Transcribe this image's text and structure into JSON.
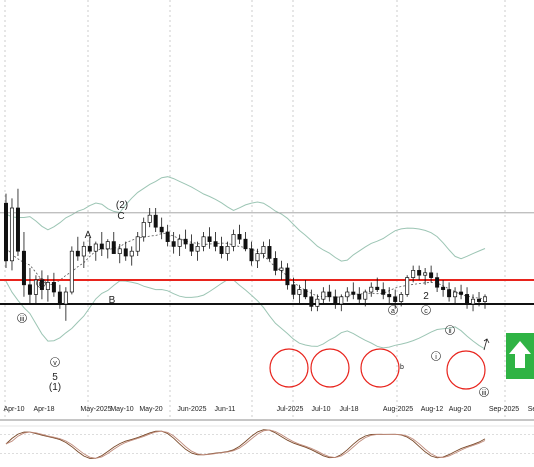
{
  "chart_data": {
    "type": "candlestick",
    "x_axis_labels": [
      "Apr-10",
      "Apr-18",
      "May-2025",
      "May-10",
      "May-20",
      "Jun-2025",
      "Jun-11",
      "Jul-2025",
      "Jul-10",
      "Jul-18",
      "Aug-2025",
      "Aug-12",
      "Aug-20",
      "Sep-2025",
      "Se"
    ],
    "levels": [
      {
        "name": "upper-horizontal",
        "value": 78,
        "color": "#9a9a9a"
      },
      {
        "name": "resistance",
        "value": 50,
        "color": "#e8231c"
      },
      {
        "name": "support",
        "value": 40,
        "color": "#111111"
      }
    ],
    "y_range": [
      0,
      100
    ],
    "wave_labels": {
      "top": [
        {
          "text": "(2)"
        },
        {
          "text": "C"
        }
      ],
      "a_left": "A",
      "b_left": "B",
      "iv": "iv",
      "iii": "iii",
      "v": "v",
      "five": "5",
      "one": "(1)",
      "two": "2",
      "a": "a",
      "c": "c",
      "b": "b",
      "ii": "ii",
      "i": "i",
      "iii_right": "iii"
    },
    "candles": [
      [
        82,
        86,
        55,
        58
      ],
      [
        58,
        84,
        54,
        80
      ],
      [
        80,
        88,
        60,
        62
      ],
      [
        62,
        70,
        43,
        48
      ],
      [
        48,
        55,
        40,
        44
      ],
      [
        44,
        52,
        40,
        50
      ],
      [
        50,
        54,
        42,
        46
      ],
      [
        46,
        52,
        41,
        49
      ],
      [
        49,
        53,
        43,
        45
      ],
      [
        45,
        48,
        38,
        40
      ],
      [
        40,
        47,
        33,
        45
      ],
      [
        45,
        64,
        44,
        62
      ],
      [
        62,
        68,
        58,
        60
      ],
      [
        60,
        66,
        55,
        64
      ],
      [
        64,
        68,
        61,
        62
      ],
      [
        62,
        66,
        58,
        65
      ],
      [
        65,
        70,
        60,
        63
      ],
      [
        63,
        67,
        59,
        66
      ],
      [
        66,
        70,
        62,
        61
      ],
      [
        61,
        65,
        57,
        63
      ],
      [
        63,
        66,
        58,
        60
      ],
      [
        60,
        64,
        56,
        62
      ],
      [
        62,
        70,
        60,
        68
      ],
      [
        68,
        76,
        66,
        74
      ],
      [
        74,
        80,
        72,
        77
      ],
      [
        77,
        80,
        70,
        72
      ],
      [
        72,
        76,
        67,
        70
      ],
      [
        70,
        73,
        64,
        66
      ],
      [
        66,
        70,
        61,
        64
      ],
      [
        64,
        69,
        60,
        67
      ],
      [
        67,
        71,
        63,
        65
      ],
      [
        65,
        69,
        60,
        62
      ],
      [
        62,
        66,
        58,
        64
      ],
      [
        64,
        70,
        62,
        68
      ],
      [
        68,
        72,
        63,
        66
      ],
      [
        66,
        70,
        62,
        64
      ],
      [
        64,
        68,
        59,
        61
      ],
      [
        61,
        66,
        58,
        64
      ],
      [
        64,
        71,
        62,
        69
      ],
      [
        69,
        73,
        65,
        67
      ],
      [
        67,
        70,
        62,
        63
      ],
      [
        63,
        66,
        56,
        58
      ],
      [
        58,
        63,
        55,
        61
      ],
      [
        61,
        66,
        59,
        64
      ],
      [
        64,
        67,
        58,
        59
      ],
      [
        59,
        62,
        52,
        54
      ],
      [
        54,
        58,
        50,
        55
      ],
      [
        55,
        57,
        46,
        48
      ],
      [
        48,
        51,
        42,
        44
      ],
      [
        44,
        48,
        40,
        46
      ],
      [
        46,
        50,
        42,
        43
      ],
      [
        43,
        46,
        37,
        39
      ],
      [
        39,
        44,
        37,
        42
      ],
      [
        42,
        47,
        40,
        45
      ],
      [
        45,
        48,
        41,
        43
      ],
      [
        43,
        46,
        38,
        40
      ],
      [
        40,
        44,
        37,
        43
      ],
      [
        43,
        47,
        41,
        45
      ],
      [
        45,
        49,
        42,
        44
      ],
      [
        44,
        47,
        40,
        42
      ],
      [
        42,
        46,
        39,
        45
      ],
      [
        45,
        49,
        43,
        47
      ],
      [
        47,
        51,
        45,
        46
      ],
      [
        46,
        49,
        42,
        44
      ],
      [
        44,
        47,
        40,
        43
      ],
      [
        43,
        46,
        38,
        41
      ],
      [
        41,
        45,
        39,
        44
      ],
      [
        44,
        52,
        43,
        51
      ],
      [
        51,
        56,
        49,
        54
      ],
      [
        54,
        56,
        50,
        52
      ],
      [
        52,
        55,
        48,
        53
      ],
      [
        53,
        56,
        49,
        51
      ],
      [
        51,
        53,
        45,
        47
      ],
      [
        47,
        50,
        43,
        46
      ],
      [
        46,
        49,
        41,
        43
      ],
      [
        43,
        47,
        40,
        45
      ],
      [
        45,
        48,
        42,
        44
      ],
      [
        44,
        47,
        38,
        40
      ],
      [
        40,
        44,
        37,
        42
      ],
      [
        42,
        45,
        39,
        41
      ],
      [
        41,
        44,
        38,
        43
      ]
    ]
  },
  "colors": {
    "bull": "#ffffff",
    "bear": "#111111",
    "wick": "#111111",
    "band": "#9cc5b4",
    "ma": "#555555",
    "grid": "#b8b8b8",
    "resistance": "#e8231c",
    "support": "#111111",
    "circle": "#e8231c",
    "arrow_bg": "#2fb344",
    "osc_main": "#7a4a2a",
    "osc_signal": "#c08c7c"
  },
  "icons": {
    "arrow": "up-arrow-icon"
  }
}
